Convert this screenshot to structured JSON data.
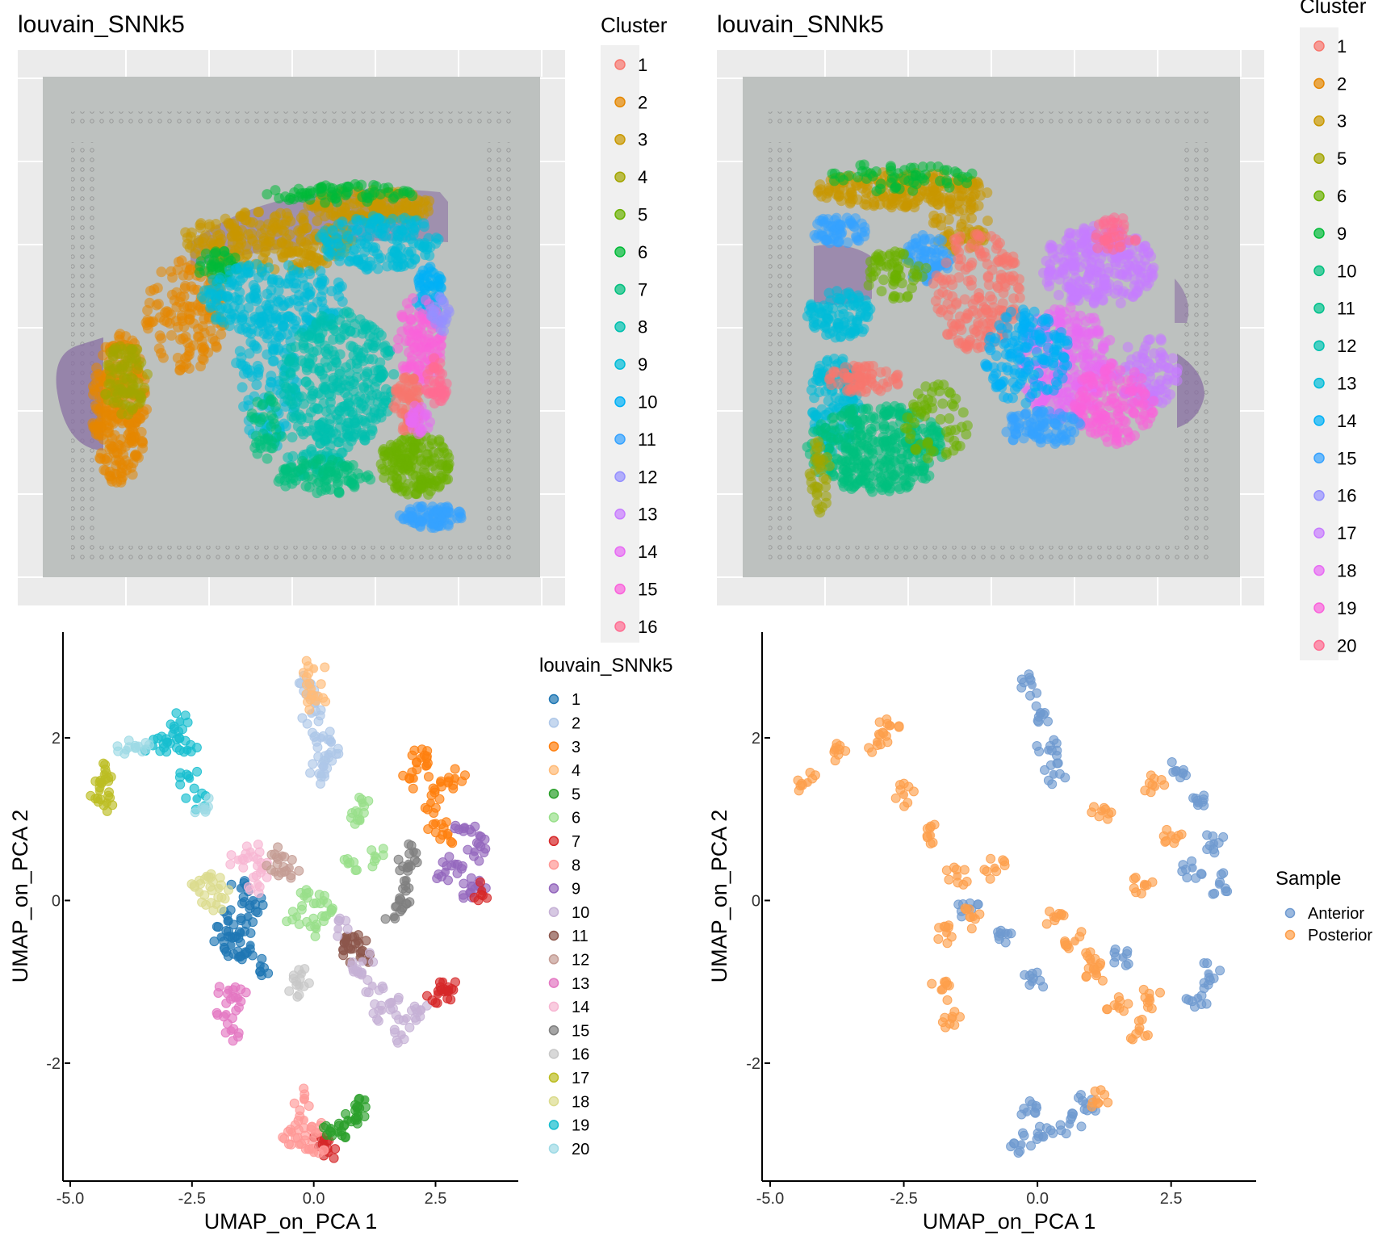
{
  "colors": {
    "panel_bg": "#ebebeb",
    "slide_bg": "#bdc1bf",
    "tissue": "#8a6fa3",
    "axis": "#000000"
  },
  "chart_data": [
    {
      "type": "scatter",
      "title": "louvain_SNNk5",
      "legend_title": "Cluster",
      "legend_position": "right",
      "background": "tissue image (anterior mouse brain section)",
      "legend": [
        {
          "label": "1",
          "color": "#f8766d"
        },
        {
          "label": "2",
          "color": "#e58700"
        },
        {
          "label": "3",
          "color": "#c99800"
        },
        {
          "label": "4",
          "color": "#a3a500"
        },
        {
          "label": "5",
          "color": "#6bb100"
        },
        {
          "label": "6",
          "color": "#00ba38"
        },
        {
          "label": "7",
          "color": "#00bf7d"
        },
        {
          "label": "8",
          "color": "#00c0af"
        },
        {
          "label": "9",
          "color": "#00bcd8"
        },
        {
          "label": "10",
          "color": "#00b0f6"
        },
        {
          "label": "11",
          "color": "#35a2ff"
        },
        {
          "label": "12",
          "color": "#9590ff"
        },
        {
          "label": "13",
          "color": "#c77cff"
        },
        {
          "label": "14",
          "color": "#e76bf3"
        },
        {
          "label": "15",
          "color": "#fa62db"
        },
        {
          "label": "16",
          "color": "#ff6c91"
        }
      ]
    },
    {
      "type": "scatter",
      "title": "louvain_SNNk5",
      "legend_title": "Cluster",
      "legend_position": "right",
      "background": "tissue image (posterior mouse brain section)",
      "legend": [
        {
          "label": "1",
          "color": "#f8766d"
        },
        {
          "label": "2",
          "color": "#e58700"
        },
        {
          "label": "3",
          "color": "#c99800"
        },
        {
          "label": "5",
          "color": "#a3a500"
        },
        {
          "label": "6",
          "color": "#6bb100"
        },
        {
          "label": "9",
          "color": "#00ba38"
        },
        {
          "label": "10",
          "color": "#00bf7d"
        },
        {
          "label": "11",
          "color": "#00c08b"
        },
        {
          "label": "12",
          "color": "#00c0af"
        },
        {
          "label": "13",
          "color": "#00bcd8"
        },
        {
          "label": "14",
          "color": "#00b0f6"
        },
        {
          "label": "15",
          "color": "#35a2ff"
        },
        {
          "label": "16",
          "color": "#9590ff"
        },
        {
          "label": "17",
          "color": "#c77cff"
        },
        {
          "label": "18",
          "color": "#e76bf3"
        },
        {
          "label": "19",
          "color": "#fa62db"
        },
        {
          "label": "20",
          "color": "#ff6c91"
        }
      ]
    },
    {
      "type": "scatter",
      "xlabel": "UMAP_on_PCA 1",
      "ylabel": "UMAP_on_PCA 2",
      "xlim": [
        -5.0,
        4.0
      ],
      "ylim": [
        -3.45,
        3.3
      ],
      "xticks": [
        -5.0,
        -2.5,
        0.0,
        2.5
      ],
      "xtick_labels": [
        "-5.0",
        "-2.5",
        "0.0",
        "2.5"
      ],
      "yticks": [
        -2,
        0,
        2
      ],
      "ytick_labels": [
        "-2",
        "0",
        "2"
      ],
      "legend_title": "louvain_SNNk5",
      "legend_position": "right",
      "legend": [
        {
          "label": "1",
          "color": "#1f77b4"
        },
        {
          "label": "2",
          "color": "#aec7e8"
        },
        {
          "label": "3",
          "color": "#ff7f0e"
        },
        {
          "label": "4",
          "color": "#ffbb78"
        },
        {
          "label": "5",
          "color": "#2ca02c"
        },
        {
          "label": "6",
          "color": "#98df8a"
        },
        {
          "label": "7",
          "color": "#d62728"
        },
        {
          "label": "8",
          "color": "#ff9896"
        },
        {
          "label": "9",
          "color": "#9467bd"
        },
        {
          "label": "10",
          "color": "#c5b0d5"
        },
        {
          "label": "11",
          "color": "#8c564b"
        },
        {
          "label": "12",
          "color": "#c49c94"
        },
        {
          "label": "13",
          "color": "#e377c2"
        },
        {
          "label": "14",
          "color": "#f7b6d2"
        },
        {
          "label": "15",
          "color": "#7f7f7f"
        },
        {
          "label": "16",
          "color": "#c7c7c7"
        },
        {
          "label": "17",
          "color": "#bcbd22"
        },
        {
          "label": "18",
          "color": "#dbdb8d"
        },
        {
          "label": "19",
          "color": "#17becf"
        },
        {
          "label": "20",
          "color": "#9edae5"
        }
      ],
      "clusters": [
        {
          "label": "2",
          "points": [
            [
              -0.1,
              2.65
            ],
            [
              -0.05,
              2.3
            ],
            [
              0.15,
              2.0
            ],
            [
              0.3,
              1.8
            ],
            [
              0.15,
              1.55
            ],
            [
              0.35,
              1.95
            ],
            [
              -0.1,
              2.5
            ],
            [
              0.2,
              1.65
            ]
          ]
        },
        {
          "label": "4",
          "points": [
            [
              0.0,
              2.85
            ],
            [
              -0.05,
              2.6
            ],
            [
              0.05,
              2.45
            ]
          ]
        },
        {
          "label": "19",
          "points": [
            [
              -2.75,
              2.2
            ],
            [
              -3.0,
              1.95
            ],
            [
              -3.3,
              1.9
            ],
            [
              -2.6,
              1.85
            ],
            [
              -2.55,
              1.5
            ],
            [
              -2.4,
              1.25
            ],
            [
              -2.9,
              2.05
            ]
          ]
        },
        {
          "label": "20",
          "points": [
            [
              -3.85,
              1.85
            ],
            [
              -3.6,
              1.9
            ],
            [
              -2.3,
              1.15
            ]
          ]
        },
        {
          "label": "17",
          "points": [
            [
              -4.3,
              1.55
            ],
            [
              -4.4,
              1.35
            ],
            [
              -4.25,
              1.2
            ],
            [
              -4.35,
              1.45
            ]
          ]
        },
        {
          "label": "3",
          "points": [
            [
              2.3,
              1.65
            ],
            [
              2.6,
              1.45
            ],
            [
              2.05,
              1.5
            ],
            [
              2.4,
              1.2
            ],
            [
              2.5,
              0.95
            ],
            [
              2.75,
              0.8
            ],
            [
              2.2,
              1.75
            ],
            [
              2.9,
              1.5
            ]
          ]
        },
        {
          "label": "9",
          "points": [
            [
              3.1,
              0.9
            ],
            [
              3.3,
              0.6
            ],
            [
              3.4,
              0.25
            ],
            [
              2.9,
              0.45
            ],
            [
              3.2,
              0.1
            ],
            [
              2.7,
              0.35
            ],
            [
              3.4,
              0.8
            ]
          ]
        },
        {
          "label": "15",
          "points": [
            [
              1.9,
              0.25
            ],
            [
              1.75,
              0.0
            ],
            [
              2.05,
              0.6
            ],
            [
              1.65,
              -0.2
            ],
            [
              1.95,
              0.45
            ]
          ]
        },
        {
          "label": "11",
          "points": [
            [
              0.8,
              -0.6
            ],
            [
              0.65,
              -0.45
            ],
            [
              0.9,
              -0.5
            ],
            [
              0.95,
              -0.7
            ]
          ]
        },
        {
          "label": "10",
          "points": [
            [
              0.5,
              -0.35
            ],
            [
              0.8,
              -0.85
            ],
            [
              1.2,
              -1.05
            ],
            [
              1.6,
              -1.25
            ],
            [
              1.9,
              -1.45
            ],
            [
              1.8,
              -1.65
            ],
            [
              1.4,
              -1.35
            ],
            [
              2.2,
              -1.35
            ],
            [
              1.0,
              -0.75
            ]
          ]
        },
        {
          "label": "7",
          "points": [
            [
              2.65,
              -1.0
            ],
            [
              2.55,
              -1.15
            ],
            [
              2.75,
              -1.1
            ],
            [
              0.2,
              -2.95
            ],
            [
              0.3,
              -3.1
            ],
            [
              3.45,
              0.12
            ]
          ]
        },
        {
          "label": "6",
          "points": [
            [
              1.0,
              1.2
            ],
            [
              0.95,
              0.98
            ],
            [
              0.7,
              0.45
            ],
            [
              0.2,
              0.0
            ],
            [
              -0.35,
              -0.2
            ],
            [
              0.05,
              -0.35
            ],
            [
              -0.2,
              0.05
            ],
            [
              0.35,
              -0.15
            ],
            [
              1.25,
              0.55
            ]
          ]
        },
        {
          "label": "1",
          "points": [
            [
              -1.5,
              -0.4
            ],
            [
              -1.7,
              -0.55
            ],
            [
              -1.35,
              -0.2
            ],
            [
              -1.75,
              -0.25
            ],
            [
              -1.55,
              -0.7
            ],
            [
              -1.3,
              -0.55
            ],
            [
              -1.1,
              -0.8
            ],
            [
              -1.9,
              -0.45
            ],
            [
              -1.5,
              0.15
            ],
            [
              -1.25,
              0.0
            ]
          ]
        },
        {
          "label": "18",
          "points": [
            [
              -2.2,
              0.3
            ],
            [
              -1.95,
              0.15
            ],
            [
              -2.0,
              -0.05
            ],
            [
              -2.35,
              0.1
            ]
          ]
        },
        {
          "label": "14",
          "points": [
            [
              -1.3,
              0.6
            ],
            [
              -1.05,
              0.4
            ],
            [
              -1.55,
              0.5
            ],
            [
              -1.15,
              0.2
            ]
          ]
        },
        {
          "label": "12",
          "points": [
            [
              -0.65,
              0.55
            ],
            [
              -0.5,
              0.4
            ],
            [
              -0.8,
              0.35
            ]
          ]
        },
        {
          "label": "13",
          "points": [
            [
              -1.75,
              -1.1
            ],
            [
              -1.8,
              -1.4
            ],
            [
              -1.7,
              -1.6
            ],
            [
              -1.55,
              -1.2
            ]
          ]
        },
        {
          "label": "8",
          "points": [
            [
              -0.2,
              -2.7
            ],
            [
              -0.3,
              -3.0
            ],
            [
              0.0,
              -3.1
            ],
            [
              -0.45,
              -2.85
            ],
            [
              -0.2,
              -2.45
            ],
            [
              0.1,
              -2.85
            ]
          ]
        },
        {
          "label": "5",
          "points": [
            [
              0.5,
              -2.85
            ],
            [
              0.7,
              -2.7
            ],
            [
              0.9,
              -2.6
            ],
            [
              1.05,
              -2.45
            ],
            [
              0.35,
              -2.8
            ]
          ]
        },
        {
          "label": "16",
          "points": [
            [
              -0.25,
              -0.9
            ],
            [
              -0.3,
              -1.05
            ]
          ]
        }
      ]
    },
    {
      "type": "scatter",
      "xlabel": "UMAP_on_PCA 1",
      "ylabel": "UMAP_on_PCA 2",
      "xlim": [
        -5.0,
        4.0
      ],
      "ylim": [
        -3.45,
        3.3
      ],
      "xticks": [
        -5.0,
        -2.5,
        0.0,
        2.5
      ],
      "xtick_labels": [
        "-5.0",
        "-2.5",
        "0.0",
        "2.5"
      ],
      "yticks": [
        -2,
        0,
        2
      ],
      "ytick_labels": [
        "-2",
        "0",
        "2"
      ],
      "legend_title": "Sample",
      "legend_position": "right",
      "legend": [
        {
          "label": "Anterior",
          "color": "#6f9ad0"
        },
        {
          "label": "Posterior",
          "color": "#fd9f4c"
        }
      ],
      "clusters": [
        {
          "label": "Anterior",
          "points": [
            [
              -0.1,
              2.65
            ],
            [
              0.05,
              2.3
            ],
            [
              0.2,
              1.85
            ],
            [
              0.3,
              1.55
            ],
            [
              2.6,
              1.6
            ],
            [
              3.0,
              1.2
            ],
            [
              3.3,
              0.7
            ],
            [
              3.4,
              0.2
            ],
            [
              2.9,
              0.4
            ],
            [
              3.2,
              -0.9
            ],
            [
              3.0,
              -1.2
            ],
            [
              -0.2,
              -2.6
            ],
            [
              -0.3,
              -3.0
            ],
            [
              0.1,
              -2.9
            ],
            [
              0.6,
              -2.75
            ],
            [
              0.9,
              -2.5
            ],
            [
              -1.3,
              -0.1
            ],
            [
              -0.6,
              -0.4
            ],
            [
              1.6,
              -0.7
            ],
            [
              -0.1,
              -1.0
            ]
          ]
        },
        {
          "label": "Posterior",
          "points": [
            [
              -4.3,
              1.45
            ],
            [
              -3.8,
              1.85
            ],
            [
              -3.0,
              1.95
            ],
            [
              -2.75,
              2.15
            ],
            [
              -2.5,
              1.3
            ],
            [
              -2.0,
              0.8
            ],
            [
              -1.5,
              0.3
            ],
            [
              -1.2,
              -0.2
            ],
            [
              -0.8,
              0.4
            ],
            [
              -1.7,
              -0.4
            ],
            [
              -1.8,
              -1.1
            ],
            [
              -1.6,
              -1.45
            ],
            [
              0.3,
              -0.2
            ],
            [
              0.7,
              -0.5
            ],
            [
              1.1,
              -0.9
            ],
            [
              1.5,
              -1.3
            ],
            [
              1.9,
              -1.6
            ],
            [
              2.1,
              -1.2
            ],
            [
              2.2,
              1.4
            ],
            [
              2.5,
              0.8
            ],
            [
              2.0,
              0.2
            ],
            [
              1.2,
              1.1
            ],
            [
              1.0,
              -0.75
            ],
            [
              1.1,
              -2.45
            ]
          ]
        }
      ]
    }
  ]
}
